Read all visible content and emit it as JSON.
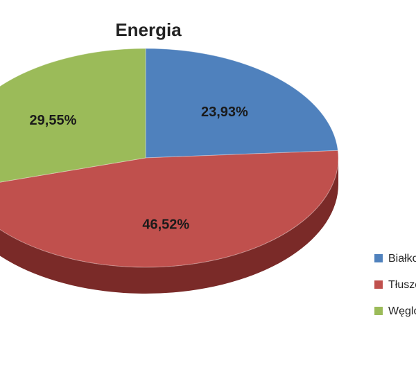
{
  "chart_data": {
    "type": "pie",
    "title": "Energia",
    "categories": [
      "Białko",
      "Tłuszcze",
      "Węglowodany"
    ],
    "values": [
      23.93,
      46.52,
      29.55
    ],
    "labels": [
      "23,93%",
      "46,52%",
      "29,55%"
    ],
    "colors": [
      "#4F81BD",
      "#C0504D",
      "#9BBB59"
    ],
    "side_colors": [
      "#2f4f78",
      "#7a2a28",
      "#5f7a30"
    ],
    "legend": {
      "position": "right",
      "items": [
        "Białko",
        "Tłuszcze",
        "Węglowodany"
      ]
    },
    "style": "3d"
  }
}
